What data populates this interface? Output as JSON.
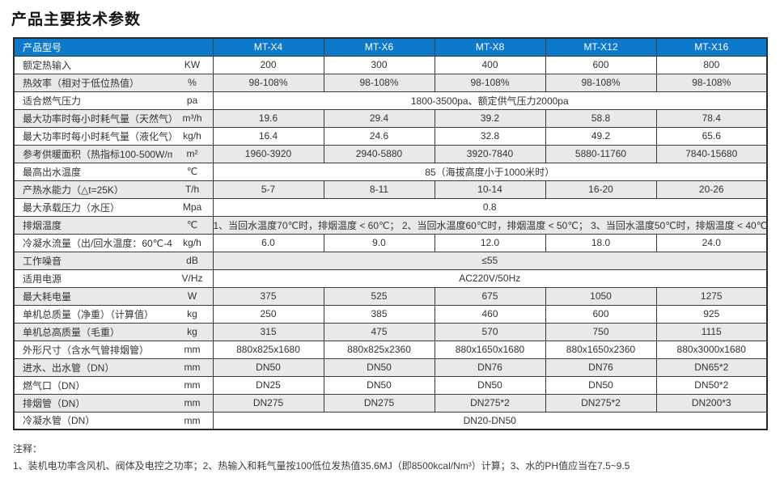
{
  "page": {
    "title": "产品主要技术参数"
  },
  "colors": {
    "header_bg": "#0D79CB",
    "stripe": "#E9E9E9",
    "border": "#3B3B3B"
  },
  "table": {
    "header": {
      "first": "产品型号",
      "models": [
        "MT-X4",
        "MT-X6",
        "MT-X8",
        "MT-X12",
        "MT-X16"
      ]
    },
    "rows": [
      {
        "label": "额定热输入",
        "unit": "KW",
        "values": [
          "200",
          "300",
          "400",
          "600",
          "800"
        ]
      },
      {
        "label": "热效率（相对于低位热值）",
        "unit": "%",
        "values": [
          "98-108%",
          "98-108%",
          "98-108%",
          "98-108%",
          "98-108%"
        ]
      },
      {
        "label": "适合燃气压力",
        "unit": "pa",
        "span": "1800-3500pa、额定供气压力2000pa"
      },
      {
        "label": "最大功率时每小时耗气量（天然气）",
        "unit": "m³/h",
        "values": [
          "19.6",
          "29.4",
          "39.2",
          "58.8",
          "78.4"
        ]
      },
      {
        "label": "最大功率时每小时耗气量（液化气）",
        "unit": "kg/h",
        "values": [
          "16.4",
          "24.6",
          "32.8",
          "49.2",
          "65.6"
        ]
      },
      {
        "label": "参考供暖面积（热指标100-500W/m）",
        "unit": "m²",
        "values": [
          "1960-3920",
          "2940-5880",
          "3920-7840",
          "5880-11760",
          "7840-15680"
        ]
      },
      {
        "label": "最高出水温度",
        "unit": "℃",
        "span": "85（海拔高度小于1000米时）"
      },
      {
        "label": "产热水能力（△t=25K）",
        "unit": "T/h",
        "values": [
          "5-7",
          "8-11",
          "10-14",
          "16-20",
          "20-26"
        ]
      },
      {
        "label": "最大承载压力（水压）",
        "unit": "Mpa",
        "span": "0.8"
      },
      {
        "label": "排烟温度",
        "unit": "℃",
        "span": "1、当回水温度70℃时，排烟温度 < 60℃；  2、当回水温度60℃时，排烟温度 < 50℃；  3、当回水温度50℃时，排烟温度 < 40℃；"
      },
      {
        "label": "冷凝水流量（出/回水温度：60℃-40℃）",
        "unit": "kg/h",
        "values": [
          "6.0",
          "9.0",
          "12.0",
          "18.0",
          "24.0"
        ]
      },
      {
        "label": "工作噪音",
        "unit": "dB",
        "span": "≤55"
      },
      {
        "label": "适用电源",
        "unit": "V/Hz",
        "span": "AC220V/50Hz"
      },
      {
        "label": "最大耗电量",
        "unit": "W",
        "values": [
          "375",
          "525",
          "675",
          "1050",
          "1275"
        ]
      },
      {
        "label": "单机总质量（净重）（计算值）",
        "unit": "kg",
        "values": [
          "250",
          "385",
          "460",
          "600",
          "925"
        ]
      },
      {
        "label": "单机总高质量（毛重）",
        "unit": "kg",
        "values": [
          "315",
          "475",
          "570",
          "750",
          "1115"
        ]
      },
      {
        "label": "外形尺寸（含水气管排烟管）",
        "unit": "mm",
        "values": [
          "880x825x1680",
          "880x825x2360",
          "880x1650x1680",
          "880x1650x2360",
          "880x3000x1680"
        ]
      },
      {
        "label": "进水、出水管（DN）",
        "unit": "mm",
        "values": [
          "DN50",
          "DN50",
          "DN76",
          "DN76",
          "DN65*2"
        ]
      },
      {
        "label": "燃气口（DN）",
        "unit": "mm",
        "values": [
          "DN25",
          "DN50",
          "DN50",
          "DN50",
          "DN50*2"
        ]
      },
      {
        "label": "排烟管（DN）",
        "unit": "mm",
        "values": [
          "DN275",
          "DN275",
          "DN275*2",
          "DN275*2",
          "DN200*3"
        ]
      },
      {
        "label": "冷凝水管（DN）",
        "unit": "mm",
        "span": "DN20-DN50"
      }
    ]
  },
  "notes": {
    "label": "注释：",
    "text": "1、装机电功率含风机、阀体及电控之功率；2、热输入和耗气量按100低位发热值35.6MJ（即8500kcal/Nm³）计算；3、水的PH值应当在7.5~9.5"
  }
}
